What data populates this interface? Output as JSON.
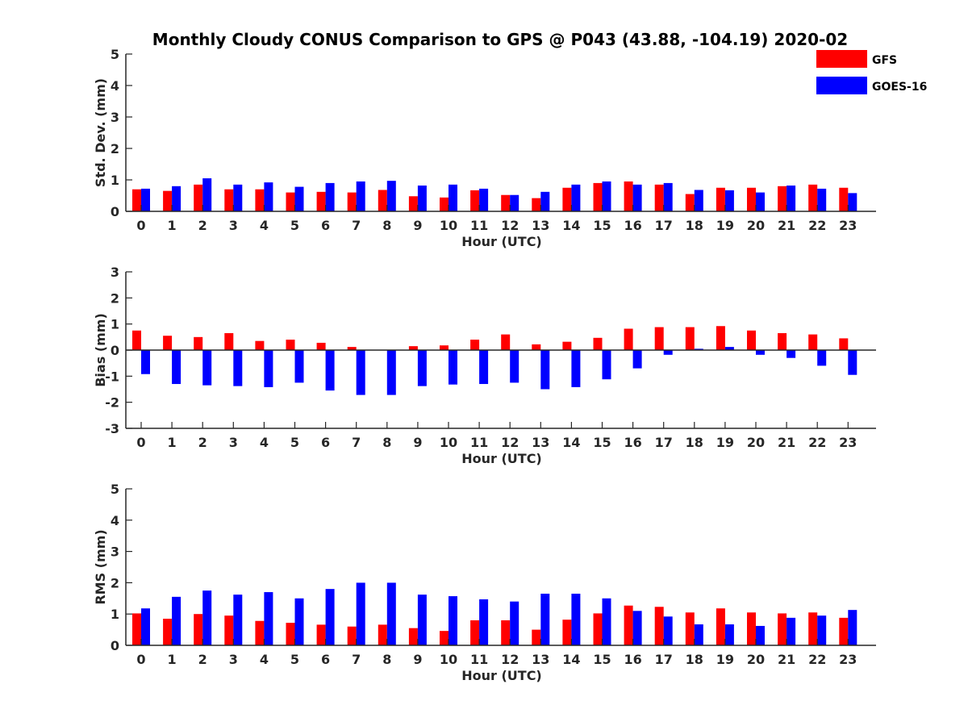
{
  "chart_data": {
    "title": "Monthly Cloudy CONUS Comparison to GPS @ P043 (43.88, -104.19) 2020-02",
    "legend": {
      "placement": "top-right",
      "entries": [
        {
          "name": "GFS",
          "color": "#ff0000"
        },
        {
          "name": "GOES-16",
          "color": "#0000ff"
        }
      ]
    },
    "panels": [
      {
        "type": "bar",
        "xlabel": "Hour (UTC)",
        "ylabel": "Std. Dev. (mm)",
        "ylim": [
          0,
          5
        ],
        "yticks": [
          "0",
          "1",
          "2",
          "3",
          "4",
          "5"
        ],
        "categories": [
          "0",
          "1",
          "2",
          "3",
          "4",
          "5",
          "6",
          "7",
          "8",
          "9",
          "10",
          "11",
          "12",
          "13",
          "14",
          "15",
          "16",
          "17",
          "18",
          "19",
          "20",
          "21",
          "22",
          "23"
        ],
        "series": [
          {
            "name": "GFS",
            "color": "#ff0000",
            "values": [
              0.7,
              0.65,
              0.85,
              0.7,
              0.7,
              0.6,
              0.62,
              0.6,
              0.68,
              0.48,
              0.44,
              0.67,
              0.52,
              0.42,
              0.75,
              0.9,
              0.95,
              0.85,
              0.55,
              0.75,
              0.75,
              0.8,
              0.85,
              0.75
            ]
          },
          {
            "name": "GOES-16",
            "color": "#0000ff",
            "values": [
              0.72,
              0.8,
              1.05,
              0.85,
              0.92,
              0.78,
              0.9,
              0.95,
              0.97,
              0.82,
              0.85,
              0.72,
              0.52,
              0.62,
              0.85,
              0.95,
              0.85,
              0.9,
              0.68,
              0.67,
              0.6,
              0.82,
              0.72,
              0.58
            ]
          }
        ]
      },
      {
        "type": "bar",
        "xlabel": "Hour (UTC)",
        "ylabel": "Bias (mm)",
        "ylim": [
          -3,
          3
        ],
        "yticks": [
          "-3",
          "-2",
          "-1",
          "0",
          "1",
          "2",
          "3"
        ],
        "zero_line": true,
        "categories": [
          "0",
          "1",
          "2",
          "3",
          "4",
          "5",
          "6",
          "7",
          "8",
          "9",
          "10",
          "11",
          "12",
          "13",
          "14",
          "15",
          "16",
          "17",
          "18",
          "19",
          "20",
          "21",
          "22",
          "23"
        ],
        "series": [
          {
            "name": "GFS",
            "color": "#ff0000",
            "values": [
              0.75,
              0.55,
              0.5,
              0.65,
              0.35,
              0.4,
              0.28,
              0.12,
              0.0,
              0.15,
              0.18,
              0.4,
              0.6,
              0.22,
              0.32,
              0.47,
              0.82,
              0.88,
              0.88,
              0.92,
              0.75,
              0.65,
              0.6,
              0.45
            ]
          },
          {
            "name": "GOES-16",
            "color": "#0000ff",
            "values": [
              -0.92,
              -1.3,
              -1.35,
              -1.38,
              -1.42,
              -1.25,
              -1.55,
              -1.72,
              -1.72,
              -1.38,
              -1.32,
              -1.3,
              -1.25,
              -1.5,
              -1.42,
              -1.12,
              -0.7,
              -0.18,
              0.05,
              0.12,
              -0.18,
              -0.3,
              -0.6,
              -0.95
            ]
          }
        ]
      },
      {
        "type": "bar",
        "xlabel": "Hour (UTC)",
        "ylabel": "RMS (mm)",
        "ylim": [
          0,
          5
        ],
        "yticks": [
          "0",
          "1",
          "2",
          "3",
          "4",
          "5"
        ],
        "categories": [
          "0",
          "1",
          "2",
          "3",
          "4",
          "5",
          "6",
          "7",
          "8",
          "9",
          "10",
          "11",
          "12",
          "13",
          "14",
          "15",
          "16",
          "17",
          "18",
          "19",
          "20",
          "21",
          "22",
          "23"
        ],
        "series": [
          {
            "name": "GFS",
            "color": "#ff0000",
            "values": [
              1.02,
              0.85,
              1.0,
              0.95,
              0.78,
              0.72,
              0.66,
              0.6,
              0.66,
              0.55,
              0.46,
              0.8,
              0.8,
              0.5,
              0.82,
              1.02,
              1.27,
              1.23,
              1.05,
              1.18,
              1.05,
              1.02,
              1.05,
              0.88
            ]
          },
          {
            "name": "GOES-16",
            "color": "#0000ff",
            "values": [
              1.18,
              1.55,
              1.75,
              1.62,
              1.7,
              1.5,
              1.8,
              2.0,
              2.0,
              1.62,
              1.57,
              1.47,
              1.4,
              1.65,
              1.65,
              1.5,
              1.1,
              0.92,
              0.67,
              0.67,
              0.62,
              0.88,
              0.95,
              1.13
            ]
          }
        ]
      }
    ]
  }
}
